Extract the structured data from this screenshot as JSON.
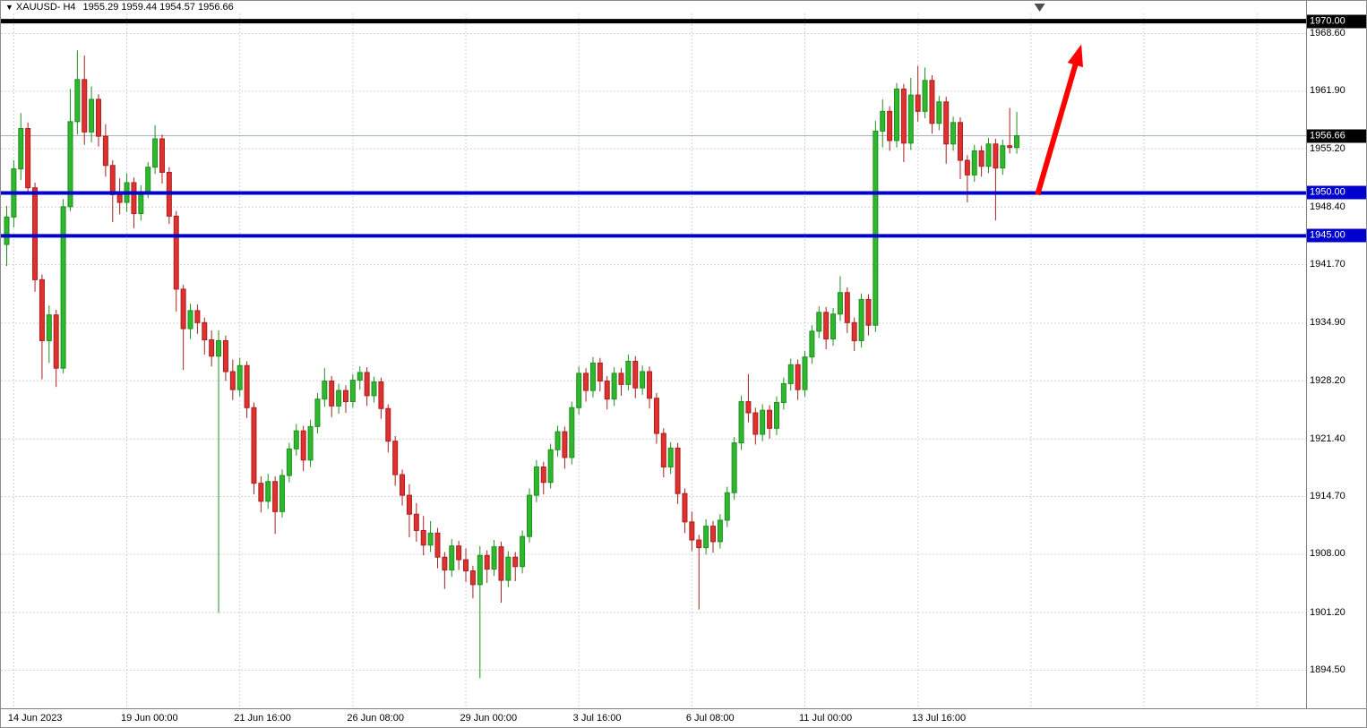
{
  "window": {
    "symbol_marker": "▼",
    "title_symbol": "XAUUSD- H4",
    "title_ohlc": "1955.29 1959.44 1954.57 1956.66"
  },
  "colors": {
    "background": "#ffffff",
    "grid": "#d4d4d4",
    "bull": "#2eb82e",
    "bull_stroke": "#1f8f1f",
    "bear": "#e03030",
    "bear_stroke": "#a82020",
    "level_black": "#000000",
    "level_blue": "#0000cc",
    "current_price_line": "#9fb3b3",
    "current_price_badge_bg": "#000000",
    "arrow": "#ff0000",
    "marker": "#4d4d4d",
    "axis_text": "#000000",
    "badge_text": "#ffffff"
  },
  "y_axis": {
    "grid_labels": [
      "1968.60",
      "1961.90",
      "1955.20",
      "1948.40",
      "1941.70",
      "1934.90",
      "1928.20",
      "1921.40",
      "1914.70",
      "1908.00",
      "1901.20",
      "1894.50"
    ],
    "grid_prices": [
      1968.6,
      1961.9,
      1955.2,
      1948.4,
      1941.7,
      1934.9,
      1928.2,
      1921.4,
      1914.7,
      1908.0,
      1901.2,
      1894.5
    ]
  },
  "x_axis": {
    "labels": [
      {
        "text": "14 Jun 2023",
        "index": 1
      },
      {
        "text": "19 Jun 00:00",
        "index": 17
      },
      {
        "text": "21 Jun 16:00",
        "index": 33
      },
      {
        "text": "26 Jun 08:00",
        "index": 49
      },
      {
        "text": "29 Jun 00:00",
        "index": 65
      },
      {
        "text": "3 Jul 16:00",
        "index": 81
      },
      {
        "text": "6 Jul 08:00",
        "index": 97
      },
      {
        "text": "11 Jul 00:00",
        "index": 113
      },
      {
        "text": "13 Jul 16:00",
        "index": 129
      }
    ]
  },
  "levels": [
    {
      "price": 1970.0,
      "label": "1970.00",
      "line_color": "#000000",
      "line_width": 5,
      "label_bg": "#000000"
    },
    {
      "price": 1950.0,
      "label": "1950.00",
      "line_color": "#0000cc",
      "line_width": 4,
      "label_bg": "#0000cc"
    },
    {
      "price": 1945.0,
      "label": "1945.00",
      "line_color": "#0000cc",
      "line_width": 4,
      "label_bg": "#0000cc"
    }
  ],
  "current_price": {
    "value": 1956.66,
    "label": "1956.66"
  },
  "annotations": {
    "trend_arrow": {
      "from_index": 146,
      "from_price": 1949.8,
      "to_index": 152.2,
      "to_price": 1967.3
    },
    "top_marker": {
      "index": 146.3,
      "symbol": "down-triangle"
    }
  },
  "chart_data": {
    "type": "candlestick",
    "symbol": "XAUUSD",
    "timeframe": "H4",
    "title": "XAUUSD- H4",
    "ohlc_format": [
      "open",
      "high",
      "low",
      "close"
    ],
    "y_range": [
      1890.0,
      1970.9
    ],
    "grid": true,
    "current_close": 1956.66,
    "candles": [
      [
        1944.0,
        1948.5,
        1941.5,
        1947.2
      ],
      [
        1947.2,
        1953.8,
        1946.0,
        1952.8
      ],
      [
        1952.8,
        1959.3,
        1951.5,
        1957.5
      ],
      [
        1957.5,
        1958.2,
        1949.8,
        1950.6
      ],
      [
        1950.6,
        1951.2,
        1938.5,
        1939.9
      ],
      [
        1939.9,
        1940.5,
        1928.3,
        1932.8
      ],
      [
        1932.8,
        1936.9,
        1930.2,
        1935.8
      ],
      [
        1935.8,
        1936.4,
        1927.4,
        1929.6
      ],
      [
        1929.6,
        1949.3,
        1929.0,
        1948.4
      ],
      [
        1948.4,
        1962.1,
        1947.9,
        1958.3
      ],
      [
        1958.3,
        1966.6,
        1956.8,
        1963.2
      ],
      [
        1963.2,
        1966.0,
        1955.6,
        1957.1
      ],
      [
        1957.1,
        1962.4,
        1955.9,
        1960.9
      ],
      [
        1960.9,
        1961.5,
        1955.4,
        1956.6
      ],
      [
        1956.6,
        1958.0,
        1951.9,
        1953.2
      ],
      [
        1953.2,
        1953.8,
        1946.6,
        1949.8
      ],
      [
        1949.8,
        1951.7,
        1947.5,
        1948.9
      ],
      [
        1948.9,
        1952.3,
        1947.8,
        1951.2
      ],
      [
        1951.2,
        1951.8,
        1945.9,
        1947.6
      ],
      [
        1947.6,
        1950.9,
        1946.8,
        1950.1
      ],
      [
        1950.1,
        1953.6,
        1949.4,
        1953.0
      ],
      [
        1953.0,
        1957.9,
        1952.2,
        1956.3
      ],
      [
        1956.3,
        1956.8,
        1951.1,
        1952.4
      ],
      [
        1952.4,
        1953.0,
        1946.4,
        1947.3
      ],
      [
        1947.3,
        1947.9,
        1936.2,
        1938.8
      ],
      [
        1938.8,
        1939.3,
        1929.4,
        1934.2
      ],
      [
        1934.2,
        1937.1,
        1933.0,
        1936.3
      ],
      [
        1936.3,
        1937.0,
        1933.6,
        1934.9
      ],
      [
        1934.9,
        1935.5,
        1931.2,
        1932.9
      ],
      [
        1932.9,
        1934.0,
        1929.8,
        1931.0
      ],
      [
        1931.0,
        1934.0,
        1901.1,
        1932.8
      ],
      [
        1932.8,
        1933.4,
        1928.1,
        1929.2
      ],
      [
        1929.2,
        1930.6,
        1925.9,
        1927.1
      ],
      [
        1927.1,
        1930.8,
        1926.3,
        1929.9
      ],
      [
        1929.9,
        1930.4,
        1923.8,
        1925.0
      ],
      [
        1925.0,
        1925.6,
        1914.9,
        1916.2
      ],
      [
        1916.2,
        1917.0,
        1912.8,
        1914.1
      ],
      [
        1914.1,
        1917.3,
        1913.2,
        1916.4
      ],
      [
        1916.4,
        1917.0,
        1910.3,
        1912.9
      ],
      [
        1912.9,
        1917.8,
        1912.2,
        1917.1
      ],
      [
        1917.1,
        1920.9,
        1916.3,
        1920.2
      ],
      [
        1920.2,
        1923.1,
        1919.4,
        1922.3
      ],
      [
        1922.3,
        1922.9,
        1917.6,
        1918.9
      ],
      [
        1918.9,
        1923.6,
        1918.1,
        1922.8
      ],
      [
        1922.8,
        1926.7,
        1922.0,
        1926.0
      ],
      [
        1926.0,
        1929.6,
        1925.1,
        1928.1
      ],
      [
        1928.1,
        1928.7,
        1923.9,
        1925.2
      ],
      [
        1925.2,
        1927.8,
        1924.3,
        1927.0
      ],
      [
        1927.0,
        1927.6,
        1924.4,
        1925.7
      ],
      [
        1925.7,
        1928.9,
        1925.0,
        1928.2
      ],
      [
        1928.2,
        1929.8,
        1927.1,
        1929.1
      ],
      [
        1929.1,
        1929.7,
        1925.2,
        1926.4
      ],
      [
        1926.4,
        1928.6,
        1925.6,
        1928.0
      ],
      [
        1928.0,
        1928.5,
        1923.7,
        1924.9
      ],
      [
        1924.9,
        1925.4,
        1919.8,
        1921.1
      ],
      [
        1921.1,
        1921.7,
        1915.9,
        1917.2
      ],
      [
        1917.2,
        1917.8,
        1913.6,
        1914.8
      ],
      [
        1914.8,
        1916.1,
        1909.9,
        1912.6
      ],
      [
        1912.6,
        1913.9,
        1909.4,
        1910.7
      ],
      [
        1910.7,
        1912.4,
        1907.8,
        1909.0
      ],
      [
        1909.0,
        1911.8,
        1908.2,
        1910.4
      ],
      [
        1910.4,
        1911.0,
        1906.3,
        1907.6
      ],
      [
        1907.6,
        1908.2,
        1903.9,
        1906.1
      ],
      [
        1906.1,
        1909.7,
        1905.3,
        1908.9
      ],
      [
        1908.9,
        1909.5,
        1906.1,
        1907.3
      ],
      [
        1907.3,
        1908.6,
        1904.7,
        1906.0
      ],
      [
        1906.0,
        1906.6,
        1902.8,
        1904.4
      ],
      [
        1904.4,
        1908.9,
        1893.5,
        1907.8
      ],
      [
        1907.8,
        1908.4,
        1904.6,
        1906.2
      ],
      [
        1906.2,
        1909.6,
        1905.4,
        1908.8
      ],
      [
        1908.8,
        1909.4,
        1902.3,
        1904.9
      ],
      [
        1904.9,
        1908.3,
        1904.1,
        1907.6
      ],
      [
        1907.6,
        1908.2,
        1904.8,
        1906.5
      ],
      [
        1906.5,
        1910.7,
        1905.7,
        1910.0
      ],
      [
        1910.0,
        1915.6,
        1909.3,
        1914.8
      ],
      [
        1914.8,
        1918.9,
        1914.0,
        1918.1
      ],
      [
        1918.1,
        1918.7,
        1914.9,
        1916.3
      ],
      [
        1916.3,
        1920.8,
        1915.6,
        1920.1
      ],
      [
        1920.1,
        1922.9,
        1919.3,
        1922.2
      ],
      [
        1922.2,
        1922.8,
        1917.9,
        1919.2
      ],
      [
        1919.2,
        1925.7,
        1918.4,
        1925.0
      ],
      [
        1925.0,
        1929.8,
        1924.2,
        1929.0
      ],
      [
        1929.0,
        1929.6,
        1925.7,
        1927.0
      ],
      [
        1927.0,
        1930.9,
        1926.2,
        1930.2
      ],
      [
        1930.2,
        1930.8,
        1926.9,
        1928.1
      ],
      [
        1928.1,
        1928.7,
        1924.8,
        1926.0
      ],
      [
        1926.0,
        1929.7,
        1925.2,
        1929.0
      ],
      [
        1929.0,
        1929.6,
        1926.4,
        1927.7
      ],
      [
        1927.7,
        1931.2,
        1927.0,
        1930.4
      ],
      [
        1930.4,
        1931.0,
        1926.1,
        1927.3
      ],
      [
        1927.3,
        1929.9,
        1926.5,
        1929.2
      ],
      [
        1929.2,
        1929.8,
        1924.9,
        1926.1
      ],
      [
        1926.1,
        1926.7,
        1920.8,
        1922.0
      ],
      [
        1922.0,
        1922.6,
        1916.9,
        1918.1
      ],
      [
        1918.1,
        1921.0,
        1917.3,
        1920.3
      ],
      [
        1920.3,
        1920.9,
        1913.8,
        1915.0
      ],
      [
        1915.0,
        1915.6,
        1910.4,
        1911.7
      ],
      [
        1911.7,
        1912.9,
        1908.3,
        1909.6
      ],
      [
        1909.6,
        1910.2,
        1901.5,
        1908.7
      ],
      [
        1908.7,
        1912.0,
        1907.9,
        1911.2
      ],
      [
        1911.2,
        1911.8,
        1908.1,
        1909.4
      ],
      [
        1909.4,
        1912.6,
        1908.6,
        1911.9
      ],
      [
        1911.9,
        1915.8,
        1911.1,
        1915.1
      ],
      [
        1915.1,
        1921.6,
        1914.3,
        1920.9
      ],
      [
        1920.9,
        1926.4,
        1920.1,
        1925.7
      ],
      [
        1925.7,
        1928.9,
        1923.3,
        1924.4
      ],
      [
        1924.4,
        1925.0,
        1920.7,
        1921.9
      ],
      [
        1921.9,
        1925.4,
        1921.1,
        1924.7
      ],
      [
        1924.7,
        1925.3,
        1921.4,
        1922.6
      ],
      [
        1922.6,
        1926.3,
        1921.8,
        1925.6
      ],
      [
        1925.6,
        1928.5,
        1924.8,
        1927.8
      ],
      [
        1927.8,
        1930.7,
        1927.0,
        1930.0
      ],
      [
        1930.0,
        1930.6,
        1925.9,
        1927.1
      ],
      [
        1927.1,
        1931.6,
        1926.3,
        1930.9
      ],
      [
        1930.9,
        1934.6,
        1930.1,
        1933.9
      ],
      [
        1933.9,
        1936.8,
        1933.1,
        1936.1
      ],
      [
        1936.1,
        1936.7,
        1931.8,
        1933.0
      ],
      [
        1933.0,
        1936.6,
        1932.2,
        1935.9
      ],
      [
        1935.9,
        1940.3,
        1935.1,
        1938.4
      ],
      [
        1938.4,
        1939.0,
        1933.7,
        1934.9
      ],
      [
        1934.9,
        1935.5,
        1931.6,
        1932.8
      ],
      [
        1932.8,
        1938.3,
        1932.0,
        1937.6
      ],
      [
        1937.6,
        1938.2,
        1933.4,
        1934.6
      ],
      [
        1934.6,
        1958.4,
        1933.8,
        1957.2
      ],
      [
        1957.2,
        1960.9,
        1955.3,
        1959.5
      ],
      [
        1959.5,
        1960.1,
        1954.9,
        1956.1
      ],
      [
        1956.1,
        1962.8,
        1955.3,
        1962.1
      ],
      [
        1962.1,
        1962.7,
        1953.6,
        1955.8
      ],
      [
        1955.8,
        1963.4,
        1955.0,
        1961.4
      ],
      [
        1961.4,
        1964.8,
        1958.3,
        1959.5
      ],
      [
        1959.5,
        1964.6,
        1958.7,
        1963.1
      ],
      [
        1963.1,
        1963.7,
        1956.9,
        1958.1
      ],
      [
        1958.1,
        1961.3,
        1957.3,
        1960.6
      ],
      [
        1960.6,
        1961.2,
        1953.4,
        1955.7
      ],
      [
        1955.7,
        1958.9,
        1954.9,
        1958.2
      ],
      [
        1958.2,
        1958.8,
        1951.6,
        1953.8
      ],
      [
        1953.8,
        1954.4,
        1948.9,
        1952.1
      ],
      [
        1952.1,
        1955.6,
        1951.3,
        1954.9
      ],
      [
        1954.9,
        1955.5,
        1951.9,
        1953.1
      ],
      [
        1953.1,
        1956.4,
        1952.3,
        1955.7
      ],
      [
        1955.7,
        1956.3,
        1946.8,
        1952.9
      ],
      [
        1952.9,
        1956.2,
        1952.1,
        1955.5
      ],
      [
        1955.5,
        1959.9,
        1954.6,
        1955.3
      ],
      [
        1955.29,
        1959.44,
        1954.57,
        1956.66
      ]
    ]
  }
}
